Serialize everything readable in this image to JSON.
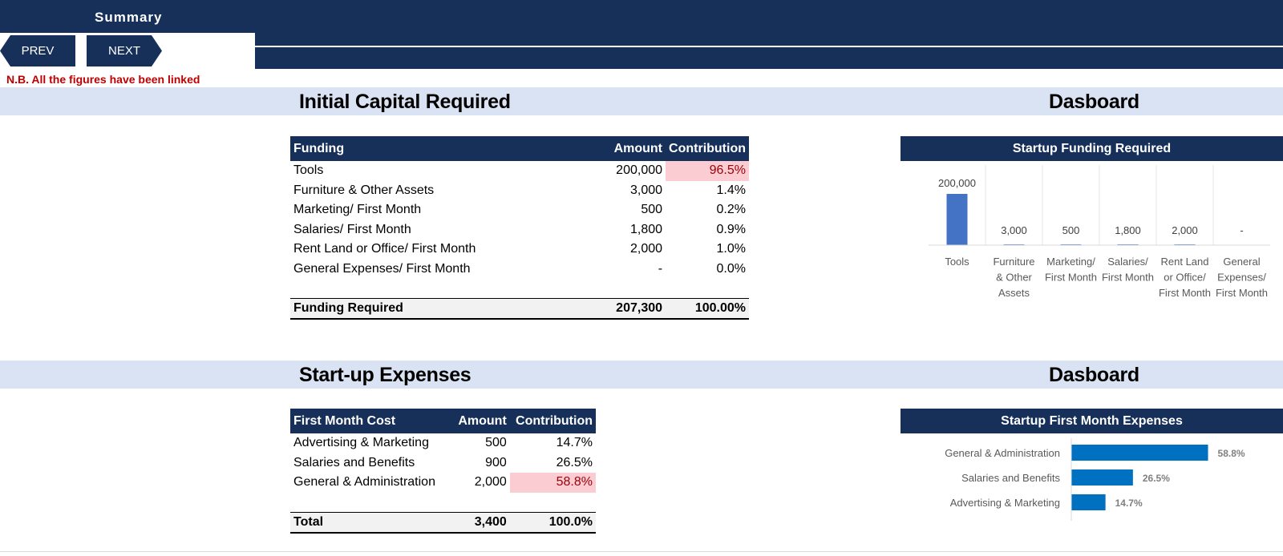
{
  "header": {
    "sheet_title": "Summary",
    "prev_label": "PREV",
    "next_label": "NEXT",
    "note": "N.B. All the figures have been linked"
  },
  "section1": {
    "title": "Initial Capital Required",
    "dashboard_title": "Dasboard",
    "table": {
      "headers": [
        "Funding",
        "Amount",
        "Contribution"
      ],
      "rows": [
        {
          "label": "Tools",
          "amount": "200,000",
          "contribution": "96.5%"
        },
        {
          "label": "Furniture & Other Assets",
          "amount": "3,000",
          "contribution": "1.4%"
        },
        {
          "label": "Marketing/ First Month",
          "amount": "500",
          "contribution": "0.2%"
        },
        {
          "label": "Salaries/ First Month",
          "amount": "1,800",
          "contribution": "0.9%"
        },
        {
          "label": "Rent Land or Office/ First Month",
          "amount": "2,000",
          "contribution": "1.0%"
        },
        {
          "label": "General Expenses/ First Month",
          "amount": "-",
          "contribution": "0.0%"
        }
      ],
      "total": {
        "label": "Funding Required",
        "amount": "207,300",
        "contribution": "100.00%"
      }
    }
  },
  "section2": {
    "title": "Start-up Expenses",
    "dashboard_title": "Dasboard",
    "table": {
      "headers": [
        "First Month Cost",
        "Amount",
        "Contribution"
      ],
      "rows": [
        {
          "label": "Advertising & Marketing",
          "amount": "500",
          "contribution": "14.7%"
        },
        {
          "label": "Salaries and Benefits",
          "amount": "900",
          "contribution": "26.5%"
        },
        {
          "label": "General & Administration",
          "amount": "2,000",
          "contribution": "58.8%"
        }
      ],
      "total": {
        "label": "Total",
        "amount": "3,400",
        "contribution": "100.0%"
      }
    }
  },
  "colors": {
    "navy": "#17305a",
    "band": "#dae3f3",
    "highlight": "#fbcdd3",
    "highlight_text": "#9c0006",
    "bar1": "#4472c4",
    "bar2": "#0070c0",
    "note": "#c00000"
  },
  "chart_data": [
    {
      "type": "bar",
      "title": "Startup Funding Required",
      "categories": [
        [
          "Tools"
        ],
        [
          "Furniture",
          "& Other",
          "Assets"
        ],
        [
          "Marketing/",
          "First Month"
        ],
        [
          "Salaries/",
          "First Month"
        ],
        [
          "Rent Land",
          "or Office/",
          "First Month"
        ],
        [
          "General",
          "Expenses/",
          "First Month"
        ]
      ],
      "values": [
        200000,
        3000,
        500,
        1800,
        2000,
        0
      ],
      "labels": [
        "200,000",
        "3,000",
        "500",
        "1,800",
        "2,000",
        "-"
      ],
      "ylim": [
        0,
        250000
      ],
      "grid": "vertical separators"
    },
    {
      "type": "bar",
      "orientation": "horizontal",
      "title": "Startup First Month Expenses",
      "categories": [
        "General & Administration",
        "Salaries and Benefits",
        "Advertising & Marketing"
      ],
      "values": [
        58.8,
        26.5,
        14.7
      ],
      "labels": [
        "58.8%",
        "26.5%",
        "14.7%"
      ],
      "xlim": [
        0,
        100
      ]
    }
  ]
}
